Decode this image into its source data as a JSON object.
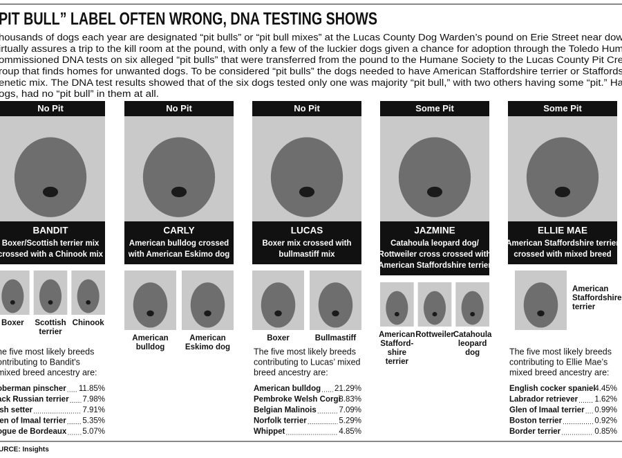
{
  "headline": "PIT BULL” LABEL OFTEN WRONG, DNA TESTING SHOWS",
  "intro": [
    "housands of dogs each year are designated “pit bulls” or “pit bull mixes” at the Lucas County Dog Warden’s pound on Erie Street near dow",
    "irtually assures a trip to the kill room at the pound, with only a few of the luckier dogs given a chance for adoption through the Toledo Hum",
    "ommissioned DNA tests on six alleged “pit bulls” that were transferred from the pound to the Humane Society to the Lucas County Pit Cre",
    "roup that finds homes for unwanted dogs. To be considered “pit bulls” the dogs needed to have American Staffordshire terrier or Staffords",
    "enetic mix. The DNA test results showed that of the six dogs tested only one was majority “pit bull,” with two others having some “pit.” Ha",
    "ogs, had no “pit bull” in them at all."
  ],
  "dogs": [
    {
      "status": "No Pit",
      "name": "BANDIT",
      "description": [
        "Boxer/Scottish terrier mix",
        "crossed with a Chinook mix"
      ],
      "breeds": [
        [
          "Boxer"
        ],
        [
          "Scottish",
          "terrier"
        ],
        [
          "Chinook"
        ]
      ],
      "ancestry": {
        "intro": [
          "he five most likely breeds",
          "ontributing to Bandit's",
          "mixed breed ancestry are:"
        ],
        "rows": [
          [
            "oberman pinscher",
            "11.85%"
          ],
          [
            "ack Russian terrier",
            "7.98%"
          ],
          [
            "ish setter",
            "7.91%"
          ],
          [
            "len of Imaal terrier",
            "5.35%"
          ],
          [
            "ogue de Bordeaux",
            "5.07%"
          ]
        ]
      }
    },
    {
      "status": "No Pit",
      "name": "CARLY",
      "description": [
        "American bulldog crossed",
        "with American Eskimo dog"
      ],
      "breeds": [
        [
          "American",
          "bulldog"
        ],
        [
          "American",
          "Eskimo dog"
        ]
      ]
    },
    {
      "status": "No Pit",
      "name": "LUCAS",
      "description": [
        "Boxer mix crossed with",
        "bullmastiff mix"
      ],
      "breeds": [
        [
          "Boxer"
        ],
        [
          "Bullmastiff"
        ]
      ],
      "ancestry": {
        "intro": [
          "The five most likely breeds",
          "contributing to Lucas’ mixed",
          "breed ancestry are:"
        ],
        "rows": [
          [
            "American bulldog",
            "21.29%"
          ],
          [
            "Pembroke Welsh Corgi",
            "8.83%"
          ],
          [
            "Belgian Malinois",
            "7.09%"
          ],
          [
            "Norfolk terrier",
            "5.29%"
          ],
          [
            "Whippet",
            "4.85%"
          ]
        ]
      }
    },
    {
      "status": "Some Pit",
      "name": "JAZMINE",
      "description": [
        "Catahoula leopard dog/",
        "Rottweiler cross crossed with",
        "American Staffordshire terrier"
      ],
      "breeds": [
        [
          "American",
          "Stafford-",
          "shire",
          "terrier"
        ],
        [
          "Rottweiler"
        ],
        [
          "Catahoula",
          "leopard",
          "dog"
        ]
      ]
    },
    {
      "status": "Some Pit",
      "name": "ELLIE MAE",
      "description": [
        "American Staffordshire terrier",
        "crossed with mixed breed"
      ],
      "breeds": [
        [
          "American",
          "Staffordshire",
          "terrier"
        ]
      ],
      "ancestry": {
        "intro": [
          "The five most likely breeds",
          "contributing to Ellie Mae’s",
          "mixed breed ancestry are:"
        ],
        "rows": [
          [
            "English cocker spaniel",
            "4.45%"
          ],
          [
            "Labrador retriever",
            "1.62%"
          ],
          [
            "Glen of Imaal terrier",
            "0.99%"
          ],
          [
            "Boston terrier",
            "0.92%"
          ],
          [
            "Border terrier",
            "0.85%"
          ]
        ]
      }
    }
  ],
  "source": "URCE: Insights"
}
